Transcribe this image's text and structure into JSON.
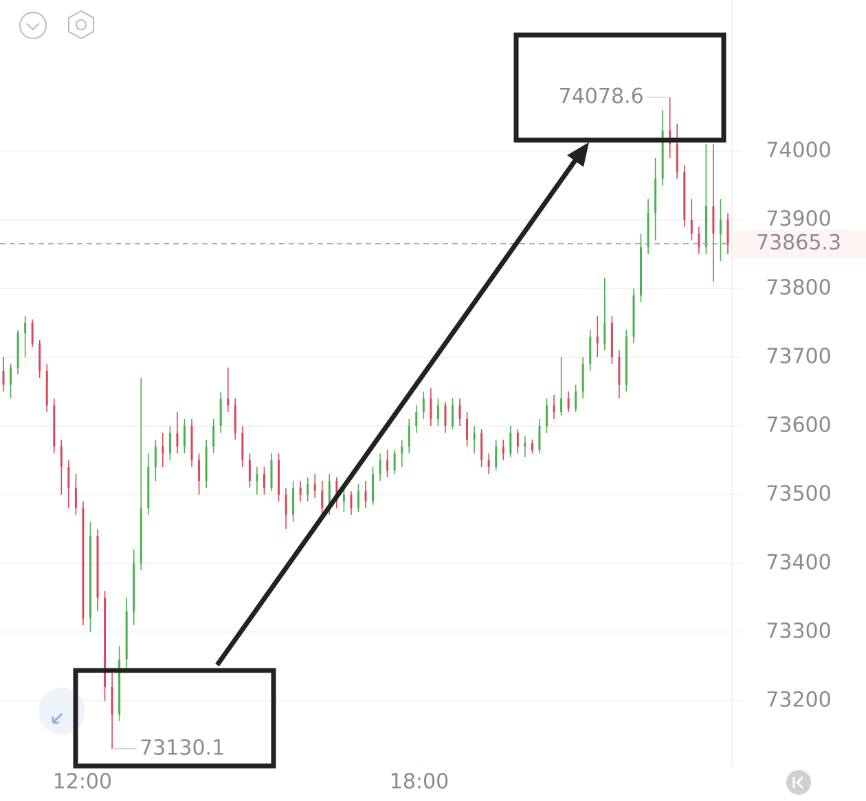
{
  "chart_data": {
    "type": "candlestick",
    "candles": [
      [
        73680,
        73700,
        73650,
        73660
      ],
      [
        73660,
        73690,
        73640,
        73685
      ],
      [
        73685,
        73740,
        73675,
        73735
      ],
      [
        73735,
        73760,
        73700,
        73750
      ],
      [
        73750,
        73755,
        73715,
        73720
      ],
      [
        73720,
        73725,
        73670,
        73680
      ],
      [
        73680,
        73690,
        73620,
        73630
      ],
      [
        73630,
        73640,
        73560,
        73570
      ],
      [
        73570,
        73580,
        73500,
        73540
      ],
      [
        73540,
        73550,
        73480,
        73510
      ],
      [
        73510,
        73530,
        73470,
        73480
      ],
      [
        73480,
        73490,
        73310,
        73320
      ],
      [
        73320,
        73460,
        73300,
        73440
      ],
      [
        73440,
        73450,
        73330,
        73350
      ],
      [
        73350,
        73360,
        73200,
        73220
      ],
      [
        73220,
        73240,
        73130.1,
        73180
      ],
      [
        73180,
        73280,
        73170,
        73260
      ],
      [
        73260,
        73350,
        73240,
        73330
      ],
      [
        73330,
        73420,
        73310,
        73400
      ],
      [
        73400,
        73670,
        73390,
        73480
      ],
      [
        73480,
        73560,
        73470,
        73540
      ],
      [
        73540,
        73580,
        73520,
        73570
      ],
      [
        73570,
        73590,
        73540,
        73560
      ],
      [
        73560,
        73600,
        73550,
        73590
      ],
      [
        73590,
        73620,
        73560,
        73570
      ],
      [
        73570,
        73610,
        73560,
        73600
      ],
      [
        73600,
        73610,
        73540,
        73550
      ],
      [
        73550,
        73560,
        73500,
        73520
      ],
      [
        73520,
        73580,
        73510,
        73570
      ],
      [
        73570,
        73610,
        73560,
        73600
      ],
      [
        73600,
        73650,
        73590,
        73640
      ],
      [
        73640,
        73685,
        73620,
        73630
      ],
      [
        73630,
        73640,
        73580,
        73590
      ],
      [
        73590,
        73600,
        73540,
        73550
      ],
      [
        73550,
        73560,
        73510,
        73520
      ],
      [
        73520,
        73540,
        73500,
        73530
      ],
      [
        73530,
        73540,
        73500,
        73510
      ],
      [
        73510,
        73560,
        73505,
        73550
      ],
      [
        73550,
        73560,
        73490,
        73500
      ],
      [
        73500,
        73510,
        73450,
        73470
      ],
      [
        73470,
        73520,
        73460,
        73510
      ],
      [
        73510,
        73520,
        73490,
        73500
      ],
      [
        73500,
        73525,
        73490,
        73515
      ],
      [
        73515,
        73530,
        73495,
        73505
      ],
      [
        73505,
        73520,
        73470,
        73480
      ],
      [
        73480,
        73530,
        73470,
        73520
      ],
      [
        73520,
        73525,
        73480,
        73490
      ],
      [
        73490,
        73510,
        73475,
        73500
      ],
      [
        73500,
        73505,
        73470,
        73480
      ],
      [
        73480,
        73515,
        73475,
        73505
      ],
      [
        73505,
        73520,
        73480,
        73490
      ],
      [
        73490,
        73540,
        73485,
        73530
      ],
      [
        73530,
        73560,
        73520,
        73550
      ],
      [
        73550,
        73565,
        73525,
        73535
      ],
      [
        73535,
        73565,
        73530,
        73560
      ],
      [
        73560,
        73580,
        73540,
        73570
      ],
      [
        73570,
        73610,
        73560,
        73600
      ],
      [
        73600,
        73630,
        73590,
        73620
      ],
      [
        73620,
        73650,
        73610,
        73640
      ],
      [
        73640,
        73655,
        73600,
        73610
      ],
      [
        73610,
        73640,
        73600,
        73630
      ],
      [
        73630,
        73635,
        73590,
        73600
      ],
      [
        73600,
        73640,
        73595,
        73630
      ],
      [
        73630,
        73640,
        73600,
        73610
      ],
      [
        73610,
        73620,
        73570,
        73580
      ],
      [
        73580,
        73600,
        73560,
        73590
      ],
      [
        73590,
        73595,
        73540,
        73550
      ],
      [
        73550,
        73560,
        73530,
        73540
      ],
      [
        73540,
        73580,
        73535,
        73570
      ],
      [
        73570,
        73580,
        73550,
        73560
      ],
      [
        73560,
        73600,
        73555,
        73590
      ],
      [
        73590,
        73595,
        73560,
        73570
      ],
      [
        73570,
        73585,
        73555,
        73575
      ],
      [
        73575,
        73580,
        73560,
        73565
      ],
      [
        73565,
        73610,
        73560,
        73600
      ],
      [
        73600,
        73640,
        73590,
        73630
      ],
      [
        73630,
        73645,
        73610,
        73620
      ],
      [
        73620,
        73700,
        73615,
        73640
      ],
      [
        73640,
        73650,
        73620,
        73625
      ],
      [
        73625,
        73660,
        73620,
        73650
      ],
      [
        73650,
        73700,
        73640,
        73690
      ],
      [
        73690,
        73740,
        73680,
        73730
      ],
      [
        73730,
        73760,
        73700,
        73720
      ],
      [
        73720,
        73815,
        73710,
        73750
      ],
      [
        73750,
        73760,
        73690,
        73700
      ],
      [
        73700,
        73710,
        73640,
        73660
      ],
      [
        73660,
        73740,
        73650,
        73730
      ],
      [
        73730,
        73800,
        73720,
        73790
      ],
      [
        73790,
        73880,
        73780,
        73860
      ],
      [
        73860,
        73930,
        73850,
        73910
      ],
      [
        73910,
        73990,
        73870,
        73960
      ],
      [
        73960,
        74060,
        73950,
        74030
      ],
      [
        74030,
        74078.6,
        73990,
        74010
      ],
      [
        74010,
        74040,
        73960,
        73970
      ],
      [
        73970,
        73980,
        73890,
        73900
      ],
      [
        73900,
        73930,
        73870,
        73880
      ],
      [
        73880,
        73890,
        73850,
        73860
      ],
      [
        73860,
        74010,
        73850,
        73920
      ],
      [
        73920,
        74010,
        73810,
        73880
      ],
      [
        73880,
        73930,
        73840,
        73900
      ],
      [
        73900,
        73910,
        73850,
        73865.3
      ]
    ],
    "up_color": "#4caf50",
    "down_color": "#d9475a",
    "xlim": [
      0,
      100
    ],
    "xticks": [
      {
        "value": 10.9,
        "label": "12:00"
      },
      {
        "value": 57.4,
        "label": "18:00"
      }
    ],
    "ylim": [
      73105,
      74220
    ],
    "yticks": [
      73200,
      73300,
      73400,
      73500,
      73600,
      73700,
      73800,
      73900,
      74000
    ],
    "grid": true,
    "last_price": 73865.3,
    "last_price_color": "#d9475a",
    "high_label": 74078.6,
    "low_label": 73130.1
  }
}
